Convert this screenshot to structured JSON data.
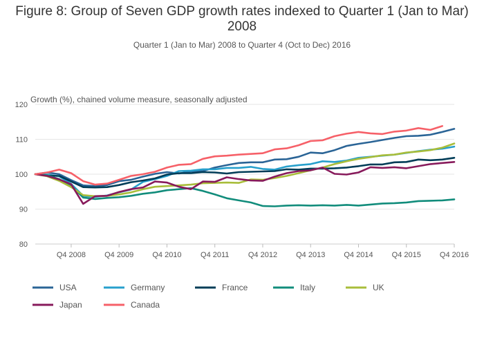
{
  "title": "Figure 8: Group of Seven GDP growth rates indexed to Quarter 1 (Jan to Mar) 2008",
  "subtitle": "Quarter 1 (Jan to Mar) 2008 to Quarter 4 (Oct to Dec) 2016",
  "ylabel": "Growth (%), chained volume measure, seasonally adjusted",
  "chart_data": {
    "type": "line",
    "title": "Figure 8: Group of Seven GDP growth rates indexed to Quarter 1 (Jan to Mar) 2008",
    "subtitle": "Quarter 1 (Jan to Mar) 2008 to Quarter 4 (Oct to Dec) 2016",
    "ylabel": "Growth (%), chained volume measure, seasonally adjusted",
    "xlabel": "",
    "ylim": [
      80,
      120
    ],
    "yticks": [
      80,
      90,
      100,
      110,
      120
    ],
    "xtick_labels": [
      "Q4 2008",
      "Q4 2009",
      "Q4 2010",
      "Q4 2011",
      "Q4 2012",
      "Q4 2013",
      "Q4 2014",
      "Q4 2015",
      "Q4 2016"
    ],
    "xtick_quarter_index": [
      3,
      7,
      11,
      15,
      19,
      23,
      27,
      31,
      35
    ],
    "grid": true,
    "legend_position": "bottom",
    "x": [
      "Q1 2008",
      "Q2 2008",
      "Q3 2008",
      "Q4 2008",
      "Q1 2009",
      "Q2 2009",
      "Q3 2009",
      "Q4 2009",
      "Q1 2010",
      "Q2 2010",
      "Q3 2010",
      "Q4 2010",
      "Q1 2011",
      "Q2 2011",
      "Q3 2011",
      "Q4 2011",
      "Q1 2012",
      "Q2 2012",
      "Q3 2012",
      "Q4 2012",
      "Q1 2013",
      "Q2 2013",
      "Q3 2013",
      "Q4 2013",
      "Q1 2014",
      "Q2 2014",
      "Q3 2014",
      "Q4 2014",
      "Q1 2015",
      "Q2 2015",
      "Q3 2015",
      "Q4 2015",
      "Q1 2016",
      "Q2 2016",
      "Q3 2016",
      "Q4 2016"
    ],
    "series": [
      {
        "name": "USA",
        "color": "#2a6496",
        "values": [
          100,
          100.5,
          100,
          98.3,
          96.8,
          96.6,
          96.9,
          98,
          98.4,
          99.3,
          100.1,
          100.6,
          100.2,
          100.8,
          100.9,
          101.9,
          102.6,
          103.2,
          103.4,
          103.4,
          104.2,
          104.3,
          105,
          106.2,
          106,
          106.9,
          108.1,
          108.7,
          109.2,
          109.8,
          110.4,
          110.9,
          111,
          111.3,
          112.1,
          113
        ]
      },
      {
        "name": "Germany",
        "color": "#27a0cc",
        "values": [
          100,
          99.9,
          99.4,
          97.2,
          93.8,
          93.5,
          93.9,
          94.8,
          95.6,
          97.8,
          98.6,
          99.5,
          100.9,
          101,
          101.4,
          101.4,
          101.8,
          101.8,
          102.1,
          101.5,
          101.3,
          102.2,
          102.6,
          102.9,
          103.7,
          103.5,
          103.9,
          104.7,
          105,
          105.3,
          105.6,
          106.1,
          106.6,
          107,
          107.3,
          107.9
        ]
      },
      {
        "name": "France",
        "color": "#003c57",
        "values": [
          100,
          99.6,
          99.5,
          97.9,
          96.3,
          96.2,
          96.3,
          96.9,
          97.7,
          98.2,
          98.8,
          99.9,
          100.3,
          100.3,
          100.6,
          100.5,
          100.2,
          100.6,
          100.7,
          100.8,
          100.9,
          101.4,
          101.3,
          101.6,
          101.6,
          101.7,
          101.9,
          102.3,
          102.8,
          102.8,
          103.4,
          103.5,
          104.2,
          104,
          104.2,
          104.7
        ]
      },
      {
        "name": "Italy",
        "color": "#118c7b",
        "values": [
          100,
          99.7,
          98.6,
          96.8,
          93.3,
          92.9,
          93.2,
          93.4,
          93.8,
          94.4,
          94.8,
          95.4,
          95.7,
          96,
          95.2,
          94.2,
          93.1,
          92.5,
          91.9,
          90.9,
          90.8,
          91,
          91.1,
          91,
          91.1,
          91,
          91.2,
          91,
          91.3,
          91.6,
          91.7,
          91.9,
          92.3,
          92.4,
          92.5,
          92.8
        ]
      },
      {
        "name": "UK",
        "color": "#a8bd3a",
        "values": [
          100,
          99.4,
          98.1,
          96.3,
          94,
          93.7,
          93.8,
          94.2,
          94.8,
          95.7,
          96.4,
          96.6,
          96.8,
          97,
          97.4,
          97.5,
          97.6,
          97.5,
          98.5,
          98.4,
          98.9,
          99.5,
          100.3,
          101.1,
          101.9,
          102.9,
          103.7,
          104.4,
          104.9,
          105.4,
          105.6,
          106.2,
          106.5,
          106.9,
          107.6,
          108.8
        ]
      },
      {
        "name": "Japan",
        "color": "#871a5b",
        "values": [
          100,
          99.5,
          98.5,
          97.1,
          91.5,
          93.7,
          93.8,
          94.9,
          95.7,
          96.2,
          97.9,
          97.6,
          96.4,
          95.7,
          97.9,
          97.8,
          99.1,
          98.6,
          98.2,
          98.1,
          99.3,
          100.3,
          100.9,
          101.1,
          101.9,
          100.1,
          99.9,
          100.5,
          102,
          101.8,
          102,
          101.7,
          102.3,
          102.9,
          103.2,
          103.5
        ]
      },
      {
        "name": "Canada",
        "color": "#f66068",
        "values": [
          100,
          100.5,
          101.3,
          100.3,
          98,
          97,
          97.3,
          98.4,
          99.5,
          100,
          100.7,
          101.9,
          102.7,
          102.9,
          104.4,
          105.1,
          105.3,
          105.6,
          105.8,
          106,
          107.1,
          107.4,
          108.3,
          109.5,
          109.7,
          110.9,
          111.6,
          112.1,
          111.7,
          111.5,
          112.2,
          112.5,
          113.2,
          112.7,
          113.8,
          null
        ]
      }
    ]
  }
}
